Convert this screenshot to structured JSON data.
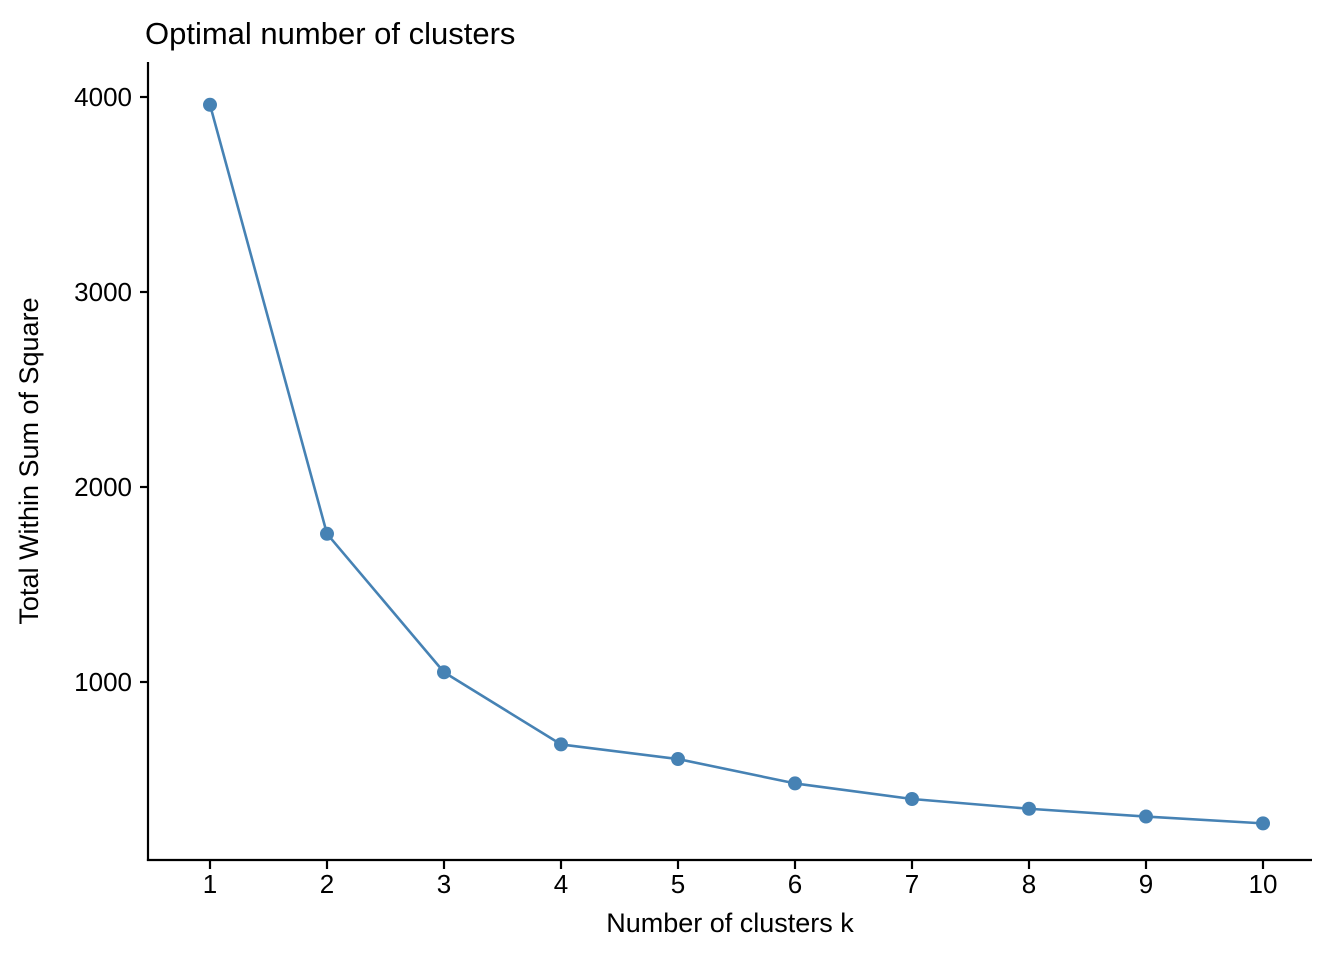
{
  "chart_data": {
    "type": "line",
    "title": "Optimal number of clusters",
    "xlabel": "Number of clusters k",
    "ylabel": "Total Within Sum of Square",
    "categories": [
      "1",
      "2",
      "3",
      "4",
      "5",
      "6",
      "7",
      "8",
      "9",
      "10"
    ],
    "values": [
      3960,
      1760,
      1050,
      680,
      605,
      480,
      400,
      350,
      310,
      275
    ],
    "yticks": [
      "4000",
      "3000",
      "2000",
      "1000"
    ],
    "ytick_values": [
      4000,
      3000,
      2000,
      1000
    ],
    "ylim": [
      87,
      4180
    ],
    "grid": false,
    "legend": "none",
    "line_color": "#4682B4",
    "point_color": "#4682B4",
    "axis_color": "#000000",
    "text_color": "#000000"
  }
}
